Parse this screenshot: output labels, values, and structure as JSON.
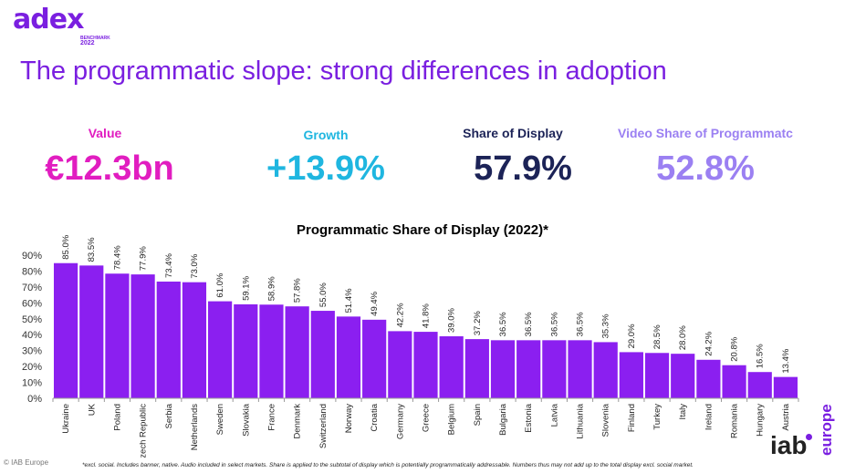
{
  "logo": {
    "word": "adex",
    "sub": "BENCHMARK",
    "year": "2022"
  },
  "page_title": "The programmatic slope: strong differences in adoption",
  "kpis": [
    {
      "label": "Value",
      "value": "€12.3bn",
      "color": "#e11dc0"
    },
    {
      "label": "Growth",
      "value": "+13.9%",
      "color": "#1fb6e0"
    },
    {
      "label": "Share of Display",
      "value": "57.9%",
      "color": "#1c2357"
    },
    {
      "label": "Video Share of Programmatc",
      "value": "52.8%",
      "color": "#9b80f2"
    }
  ],
  "chart_data": {
    "type": "bar",
    "title": "Programmatic Share of Display (2022)*",
    "categories": [
      "Ukraine",
      "UK",
      "Poland",
      "Czech Republic",
      "Serbia",
      "Netherlands",
      "Sweden",
      "Slovakia",
      "France",
      "Denmark",
      "Switzerland",
      "Norway",
      "Croatia",
      "Germany",
      "Greece",
      "Belgium",
      "Spain",
      "Bulgaria",
      "Estonia",
      "Latvia",
      "Lithuania",
      "Slovenia",
      "Finland",
      "Turkey",
      "Italy",
      "Ireland",
      "Romania",
      "Hungary",
      "Austria"
    ],
    "values": [
      85.0,
      83.5,
      78.4,
      77.9,
      73.4,
      73.0,
      61.0,
      59.1,
      58.9,
      57.8,
      55.0,
      51.4,
      49.4,
      42.2,
      41.8,
      39.0,
      37.2,
      36.5,
      36.5,
      36.5,
      36.5,
      35.3,
      29.0,
      28.5,
      28.0,
      24.2,
      20.8,
      16.5,
      13.4
    ],
    "data_labels": [
      "85.0%",
      "83.5%",
      "78.4%",
      "77.9%",
      "73.4%",
      "73.0%",
      "61.0%",
      "59.1%",
      "58.9%",
      "57.8%",
      "55.0%",
      "51.4%",
      "49.4%",
      "42.2%",
      "41.8%",
      "39.0%",
      "37.2%",
      "36.5%",
      "36.5%",
      "36.5%",
      "36.5%",
      "35.3%",
      "29.0%",
      "28.5%",
      "28.0%",
      "24.2%",
      "20.8%",
      "16.5%",
      "13.4%"
    ],
    "yticks": [
      "0%",
      "10%",
      "20%",
      "30%",
      "40%",
      "50%",
      "60%",
      "70%",
      "80%",
      "90%"
    ],
    "ylim": [
      0,
      95
    ],
    "bar_color": "#8b1ff0",
    "grid": false
  },
  "footer": {
    "copyright": "© IAB Europe",
    "footnote": "*excl. social. Includes banner, native. Audio included in select markets. Share is applied to the subtotal of display which is potentially programmatically addressable. Numbers thus may not add up to the total display excl. social market.",
    "iab_word": "iab",
    "iab_sub": "europe"
  }
}
